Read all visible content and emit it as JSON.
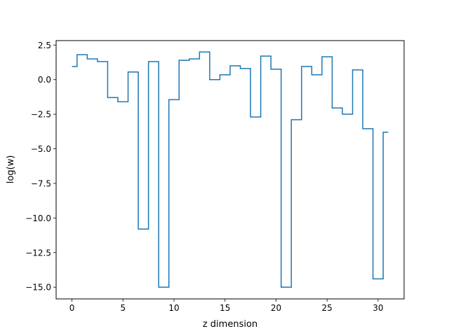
{
  "chart_data": {
    "type": "line",
    "drawstyle": "steps-mid",
    "title": "",
    "xlabel": "z dimension",
    "ylabel": "log(w)",
    "xlim": [
      -1.55,
      32.55
    ],
    "ylim": [
      -15.85,
      2.82
    ],
    "grid": false,
    "x_ticks": [
      0,
      5,
      10,
      15,
      20,
      25,
      30
    ],
    "x_tick_labels": [
      "0",
      "5",
      "10",
      "15",
      "20",
      "25",
      "30"
    ],
    "y_ticks": [
      2.5,
      0.0,
      -2.5,
      -5.0,
      -7.5,
      -10.0,
      -12.5,
      -15.0
    ],
    "y_tick_labels": [
      "2.5",
      "0.0",
      "−2.5",
      "−5.0",
      "−7.5",
      "−10.0",
      "−12.5",
      "−15.0"
    ],
    "series": [
      {
        "color": "#1f77b4",
        "x": [
          0,
          1,
          2,
          3,
          4,
          5,
          6,
          7,
          8,
          9,
          10,
          11,
          12,
          13,
          14,
          15,
          16,
          17,
          18,
          19,
          20,
          21,
          22,
          23,
          24,
          25,
          26,
          27,
          28,
          29,
          30,
          31
        ],
        "y": [
          0.95,
          1.8,
          1.5,
          1.3,
          -1.3,
          -1.6,
          0.55,
          -10.8,
          1.3,
          -15.0,
          -1.45,
          1.4,
          1.5,
          2.0,
          0.0,
          0.35,
          1.0,
          0.8,
          -2.7,
          1.7,
          0.75,
          -15.0,
          -2.9,
          0.95,
          0.35,
          1.65,
          -2.05,
          -2.5,
          0.7,
          -3.55,
          -14.4,
          -3.8
        ]
      }
    ]
  }
}
